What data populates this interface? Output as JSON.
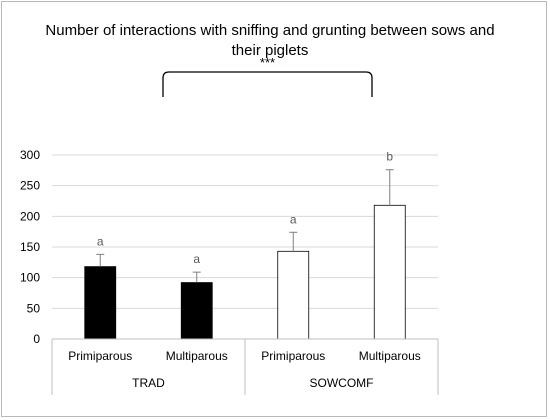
{
  "chart_data": {
    "type": "bar",
    "title": "Number of interactions with sniffing and grunting between sows and their piglets",
    "groups": [
      {
        "name": "TRAD",
        "categories": [
          "Primiparous",
          "Multiparous"
        ]
      },
      {
        "name": "SOWCOMF",
        "categories": [
          "Primiparous",
          "Multiparous"
        ]
      }
    ],
    "bars": [
      {
        "group": "TRAD",
        "category": "Primiparous",
        "value": 118,
        "error": 20,
        "letter": "a",
        "fill": "#000000"
      },
      {
        "group": "TRAD",
        "category": "Multiparous",
        "value": 92,
        "error": 17,
        "letter": "a",
        "fill": "#000000"
      },
      {
        "group": "SOWCOMF",
        "category": "Primiparous",
        "value": 143,
        "error": 31,
        "letter": "a",
        "fill": "#ffffff"
      },
      {
        "group": "SOWCOMF",
        "category": "Multiparous",
        "value": 218,
        "error": 58,
        "letter": "b",
        "fill": "#ffffff"
      }
    ],
    "y_ticks": [
      "0",
      "50",
      "100",
      "150",
      "200",
      "250",
      "300"
    ],
    "ylim": [
      0,
      300
    ],
    "grid": true,
    "significance": "***",
    "colors": {
      "bar_dark": "#000000",
      "bar_light": "#ffffff",
      "grid": "#d9d9d9",
      "text": "#595959"
    }
  }
}
